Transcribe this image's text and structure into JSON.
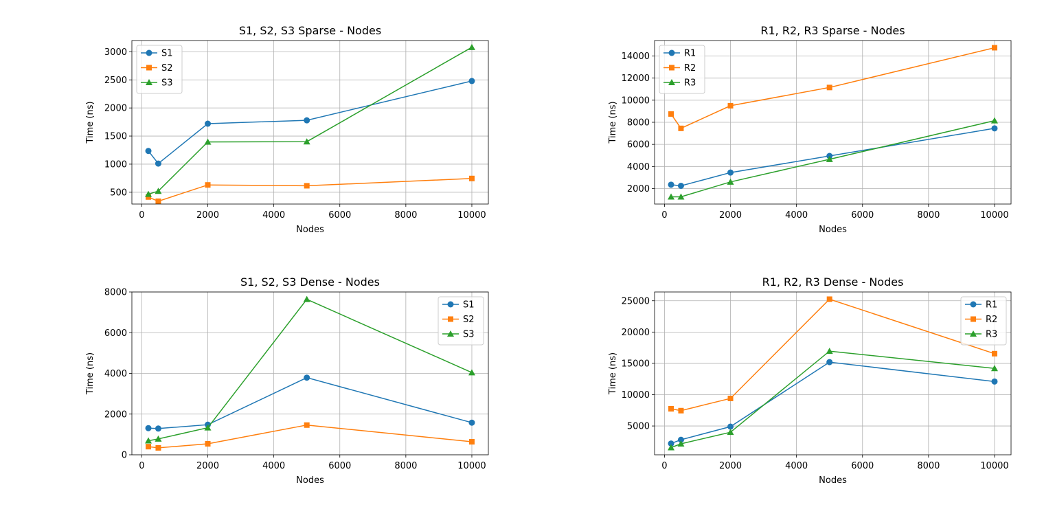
{
  "chart_data": [
    {
      "type": "line",
      "title": "S1, S2, S3 Sparse - Nodes",
      "xlabel": "Nodes",
      "ylabel": "Time (ns)",
      "x": [
        200,
        500,
        2000,
        5000,
        10000
      ],
      "xlim": [
        -300,
        10500
      ],
      "ylim": [
        290,
        3200
      ],
      "xticks": [
        0,
        2000,
        4000,
        6000,
        8000,
        10000
      ],
      "yticks": [
        500,
        1000,
        1500,
        2000,
        2500,
        3000
      ],
      "grid": true,
      "legend": "upper-left",
      "series": [
        {
          "name": "S1",
          "marker": "circle",
          "color": "#1f77b4",
          "values": [
            1235,
            1010,
            1720,
            1780,
            2480
          ]
        },
        {
          "name": "S2",
          "marker": "square",
          "color": "#ff7f0e",
          "values": [
            415,
            340,
            630,
            615,
            745
          ]
        },
        {
          "name": "S3",
          "marker": "triangle",
          "color": "#2ca02c",
          "values": [
            465,
            520,
            1395,
            1400,
            3080
          ]
        }
      ]
    },
    {
      "type": "line",
      "title": "R1, R2, R3 Sparse - Nodes",
      "xlabel": "Nodes",
      "ylabel": "Time (ns)",
      "x": [
        200,
        500,
        2000,
        5000,
        10000
      ],
      "xlim": [
        -300,
        10500
      ],
      "ylim": [
        600,
        15400
      ],
      "xticks": [
        0,
        2000,
        4000,
        6000,
        8000,
        10000
      ],
      "yticks": [
        2000,
        4000,
        6000,
        8000,
        10000,
        12000,
        14000
      ],
      "grid": true,
      "legend": "upper-left",
      "series": [
        {
          "name": "R1",
          "marker": "circle",
          "color": "#1f77b4",
          "values": [
            2350,
            2250,
            3450,
            4950,
            7450
          ]
        },
        {
          "name": "R2",
          "marker": "square",
          "color": "#ff7f0e",
          "values": [
            8750,
            7450,
            9500,
            11150,
            14750
          ]
        },
        {
          "name": "R3",
          "marker": "triangle",
          "color": "#2ca02c",
          "values": [
            1250,
            1250,
            2600,
            4650,
            8150
          ]
        }
      ]
    },
    {
      "type": "line",
      "title": "S1, S2, S3 Dense - Nodes",
      "xlabel": "Nodes",
      "ylabel": "Time (ns)",
      "x": [
        200,
        500,
        2000,
        5000,
        10000
      ],
      "xlim": [
        -300,
        10500
      ],
      "ylim": [
        0,
        8000
      ],
      "xticks": [
        0,
        2000,
        4000,
        6000,
        8000,
        10000
      ],
      "yticks": [
        0,
        2000,
        4000,
        6000,
        8000
      ],
      "grid": true,
      "legend": "upper-right",
      "series": [
        {
          "name": "S1",
          "marker": "circle",
          "color": "#1f77b4",
          "values": [
            1310,
            1290,
            1480,
            3790,
            1580
          ]
        },
        {
          "name": "S2",
          "marker": "square",
          "color": "#ff7f0e",
          "values": [
            400,
            340,
            540,
            1460,
            640
          ]
        },
        {
          "name": "S3",
          "marker": "triangle",
          "color": "#2ca02c",
          "values": [
            690,
            780,
            1330,
            7640,
            4040
          ]
        }
      ]
    },
    {
      "type": "line",
      "title": "R1, R2, R3 Dense - Nodes",
      "xlabel": "Nodes",
      "ylabel": "Time (ns)",
      "x": [
        200,
        500,
        2000,
        5000,
        10000
      ],
      "xlim": [
        -300,
        10500
      ],
      "ylim": [
        400,
        26400
      ],
      "xticks": [
        0,
        2000,
        4000,
        6000,
        8000,
        10000
      ],
      "yticks": [
        5000,
        10000,
        15000,
        20000,
        25000
      ],
      "grid": true,
      "legend": "upper-right",
      "series": [
        {
          "name": "R1",
          "marker": "circle",
          "color": "#1f77b4",
          "values": [
            2200,
            2800,
            4900,
            15200,
            12100
          ]
        },
        {
          "name": "R2",
          "marker": "square",
          "color": "#ff7f0e",
          "values": [
            7750,
            7450,
            9400,
            25250,
            16550
          ]
        },
        {
          "name": "R3",
          "marker": "triangle",
          "color": "#2ca02c",
          "values": [
            1550,
            2150,
            4000,
            16950,
            14200
          ]
        }
      ]
    }
  ]
}
